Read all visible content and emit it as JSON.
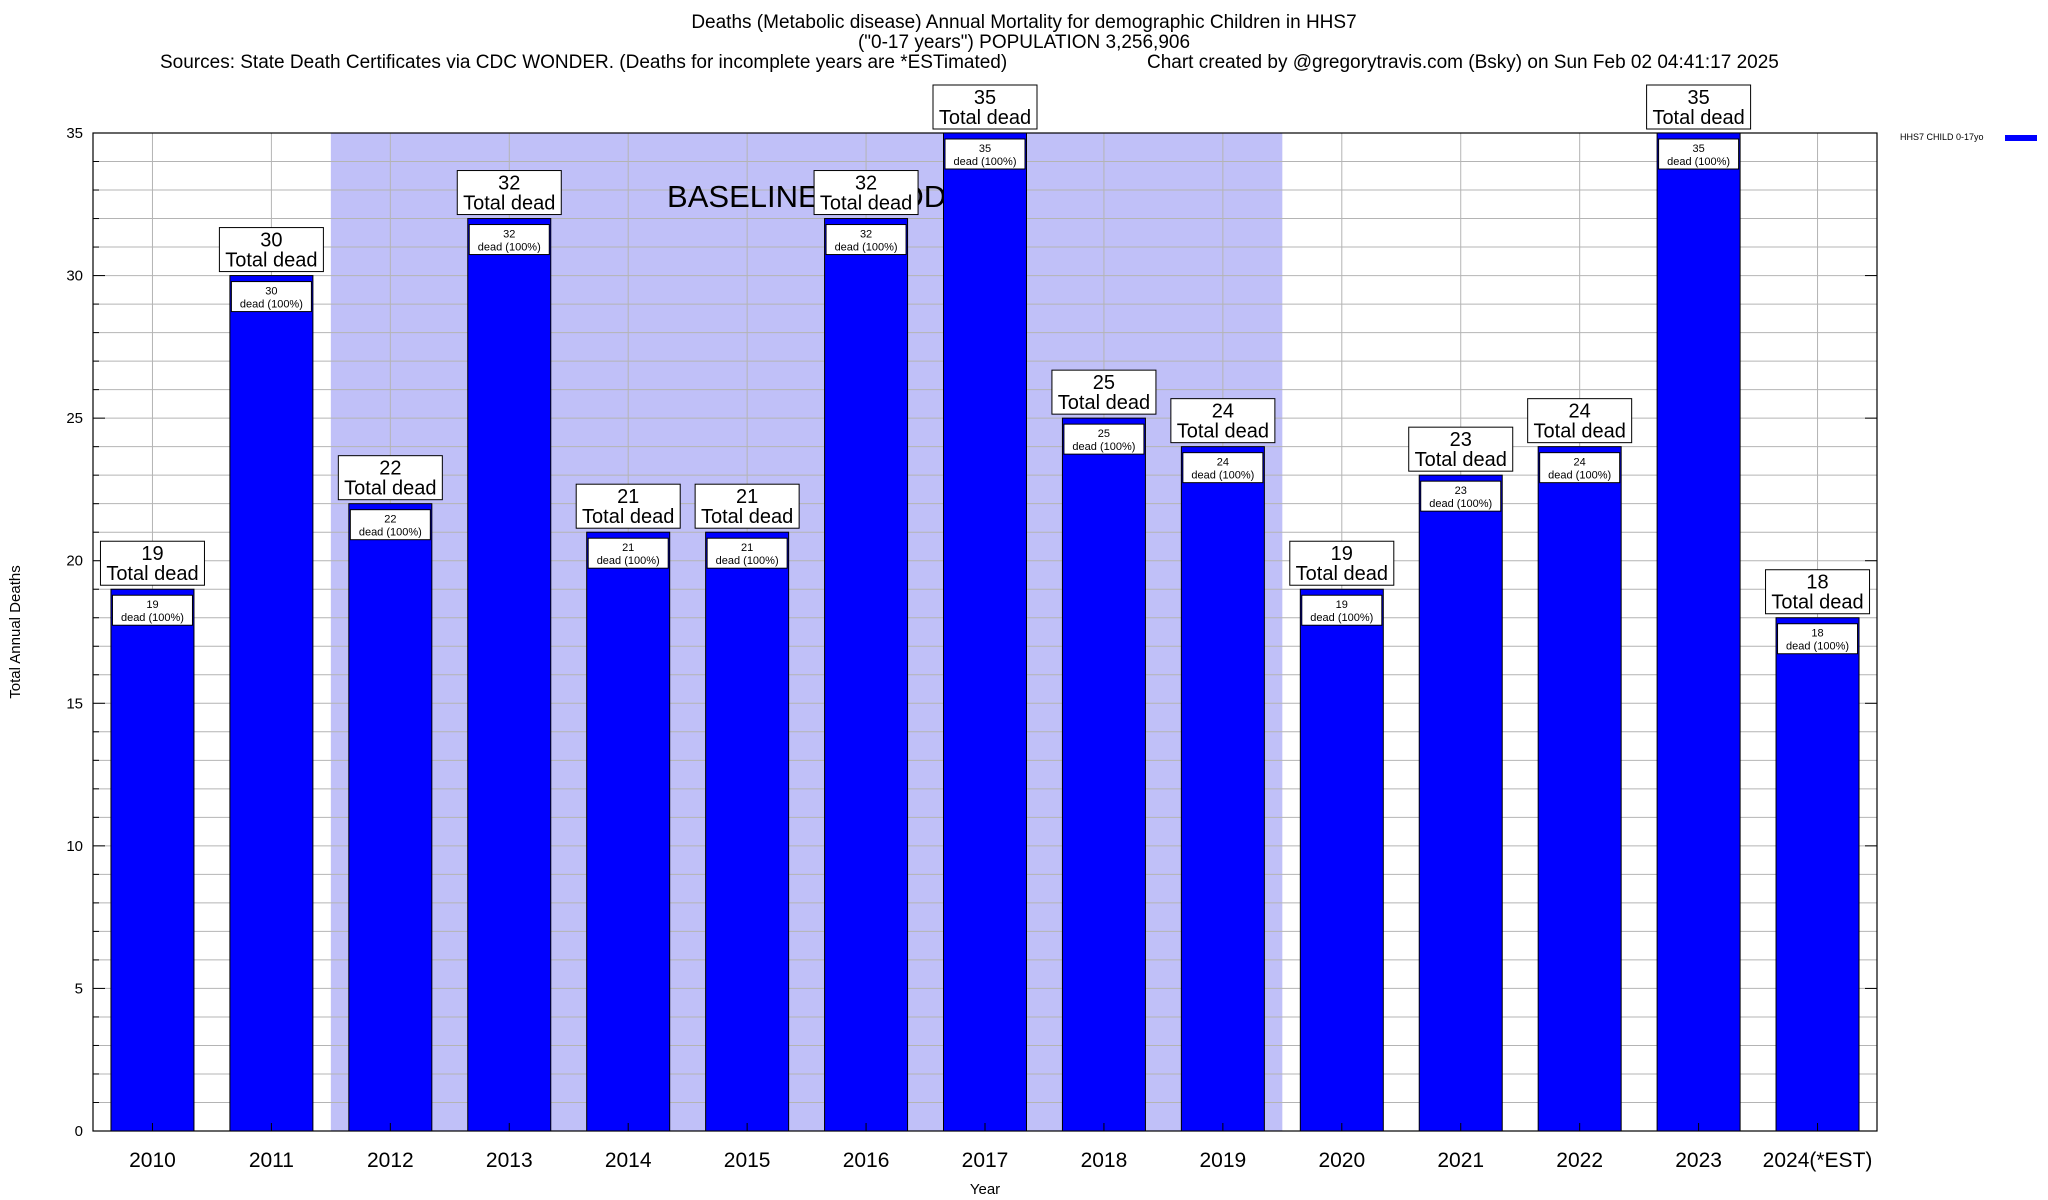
{
  "chart_data": {
    "type": "bar",
    "title_line1": "Deaths (Metabolic disease) Annual Mortality for demographic Children in HHS7",
    "title_line2": "(\"0-17 years\") POPULATION 3,256,906",
    "sources": "Sources: State Death Certificates via CDC WONDER. (Deaths for incomplete years are *ESTimated)",
    "credit": "Chart created by @gregorytravis.com (Bsky) on Sun Feb 02 04:41:17 2025",
    "xlabel": "Year",
    "ylabel": "Total Annual Deaths",
    "ylim": [
      0,
      35
    ],
    "yticks": [
      0,
      5,
      10,
      15,
      20,
      25,
      30,
      35
    ],
    "categories": [
      "2010",
      "2011",
      "2012",
      "2013",
      "2014",
      "2015",
      "2016",
      "2017",
      "2018",
      "2019",
      "2020",
      "2021",
      "2022",
      "2023",
      "2024(*EST)"
    ],
    "series": [
      {
        "name": "HHS7 CHILD 0-17yo",
        "color": "#0000ff",
        "values": [
          19,
          30,
          22,
          32,
          21,
          21,
          32,
          35,
          25,
          24,
          19,
          23,
          24,
          35,
          18
        ],
        "inner_labels": [
          "dead (100%)",
          "dead (100%)",
          "dead (100%)",
          "dead (100%)",
          "dead (100%)",
          "dead (100%)",
          "dead (100%)",
          "dead (100%)",
          "dead (100%)",
          "dead (100%)",
          "dead (100%)",
          "dead (100%)",
          "dead (100%)",
          "dead (100%)",
          "dead (100%)"
        ]
      }
    ],
    "total_label": "Total dead",
    "baseline": {
      "label": "BASELINE PERIOD",
      "start": "2012",
      "end": "2019",
      "color": "#c0c0f8"
    },
    "legend_position": "top-right",
    "grid": true
  }
}
